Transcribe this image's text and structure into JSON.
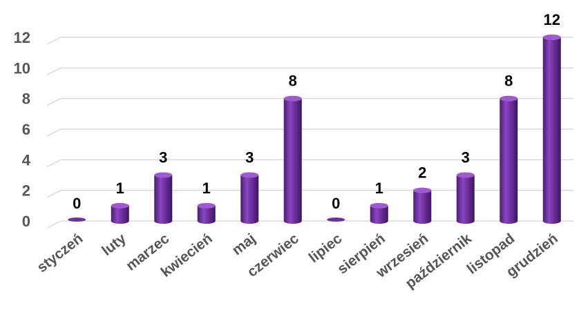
{
  "chart_data": {
    "type": "bar",
    "style": "3d-cylinder",
    "categories": [
      "styczeń",
      "luty",
      "marzec",
      "kwiecień",
      "maj",
      "czerwiec",
      "lipiec",
      "sierpień",
      "wrzesień",
      "październik",
      "listopad",
      "grudzień"
    ],
    "values": [
      0,
      1,
      3,
      1,
      3,
      8,
      0,
      1,
      2,
      3,
      8,
      12
    ],
    "ylim": [
      0,
      12
    ],
    "yticks": [
      0,
      2,
      4,
      6,
      8,
      10,
      12
    ],
    "grid": true,
    "legend": "none",
    "data_labels": true
  },
  "colors": {
    "bar_main": "#7030a0",
    "bar_light": "#a05ad0",
    "bar_dark": "#4b1c72",
    "grid": "#d9d9d9"
  }
}
